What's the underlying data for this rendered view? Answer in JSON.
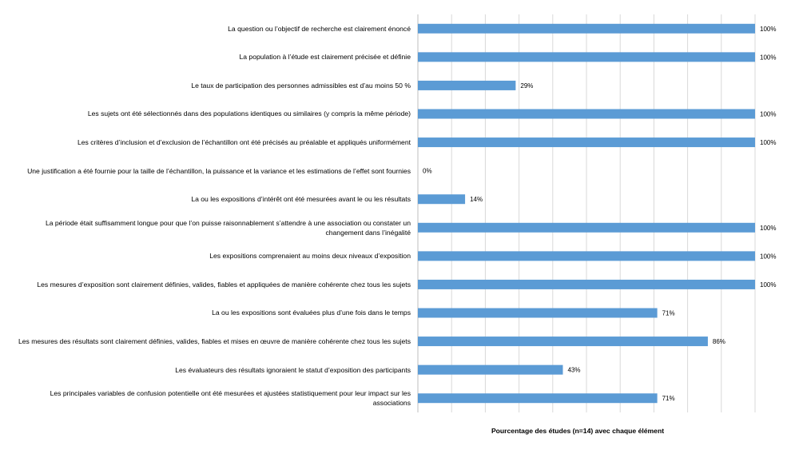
{
  "chart_data": {
    "type": "bar",
    "orientation": "horizontal",
    "categories": [
      "La question ou l’objectif de recherche est clairement énoncé",
      "La population à l’étude est clairement précisée et définie",
      "Le taux de participation des personnes admissibles est d’au moins 50 %",
      "Les sujets ont été sélectionnés dans des populations identiques ou similaires (y compris la même période)",
      "Les critères d’inclusion et d’exclusion de l’échantillon ont été précisés au préalable et appliqués uniformément",
      "Une justification a été fournie pour la taille de l’échantillon, la puissance et la variance et les estimations de l’effet sont fournies",
      "La ou les expositions d’intérêt ont été mesurées avant le ou les résultats",
      "La période était suffisamment longue pour que l’on puisse raisonnablement s’attendre à une association ou constater un changement dans l’inégalité",
      "Les expositions comprenaient au moins deux niveaux d’exposition",
      "Les mesures d’exposition sont clairement définies, valides, fiables et appliquées de manière cohérente chez tous les sujets",
      "La ou les expositions sont évaluées plus d’une fois dans le temps",
      "Les mesures des résultats sont clairement définies, valides, fiables et mises en œuvre de manière cohérente chez tous les sujets",
      "Les évaluateurs des résultats ignoraient le statut d’exposition des participants",
      "Les principales variables de confusion potentielle ont été mesurées et ajustées statistiquement pour leur impact sur les associations"
    ],
    "values": [
      100,
      100,
      29,
      100,
      100,
      0,
      14,
      100,
      100,
      100,
      71,
      86,
      43,
      71
    ],
    "value_labels": [
      "100%",
      "100%",
      "29%",
      "100%",
      "100%",
      "0%",
      "14%",
      "100%",
      "100%",
      "100%",
      "71%",
      "86%",
      "43%",
      "71%"
    ],
    "xlabel": "Pourcentage des études (n=14) avec chaque élément",
    "xlim": [
      0,
      100
    ],
    "gridlines": "vertical",
    "bar_color": "#5b9bd5",
    "grid_color": "#d9d9d9"
  }
}
